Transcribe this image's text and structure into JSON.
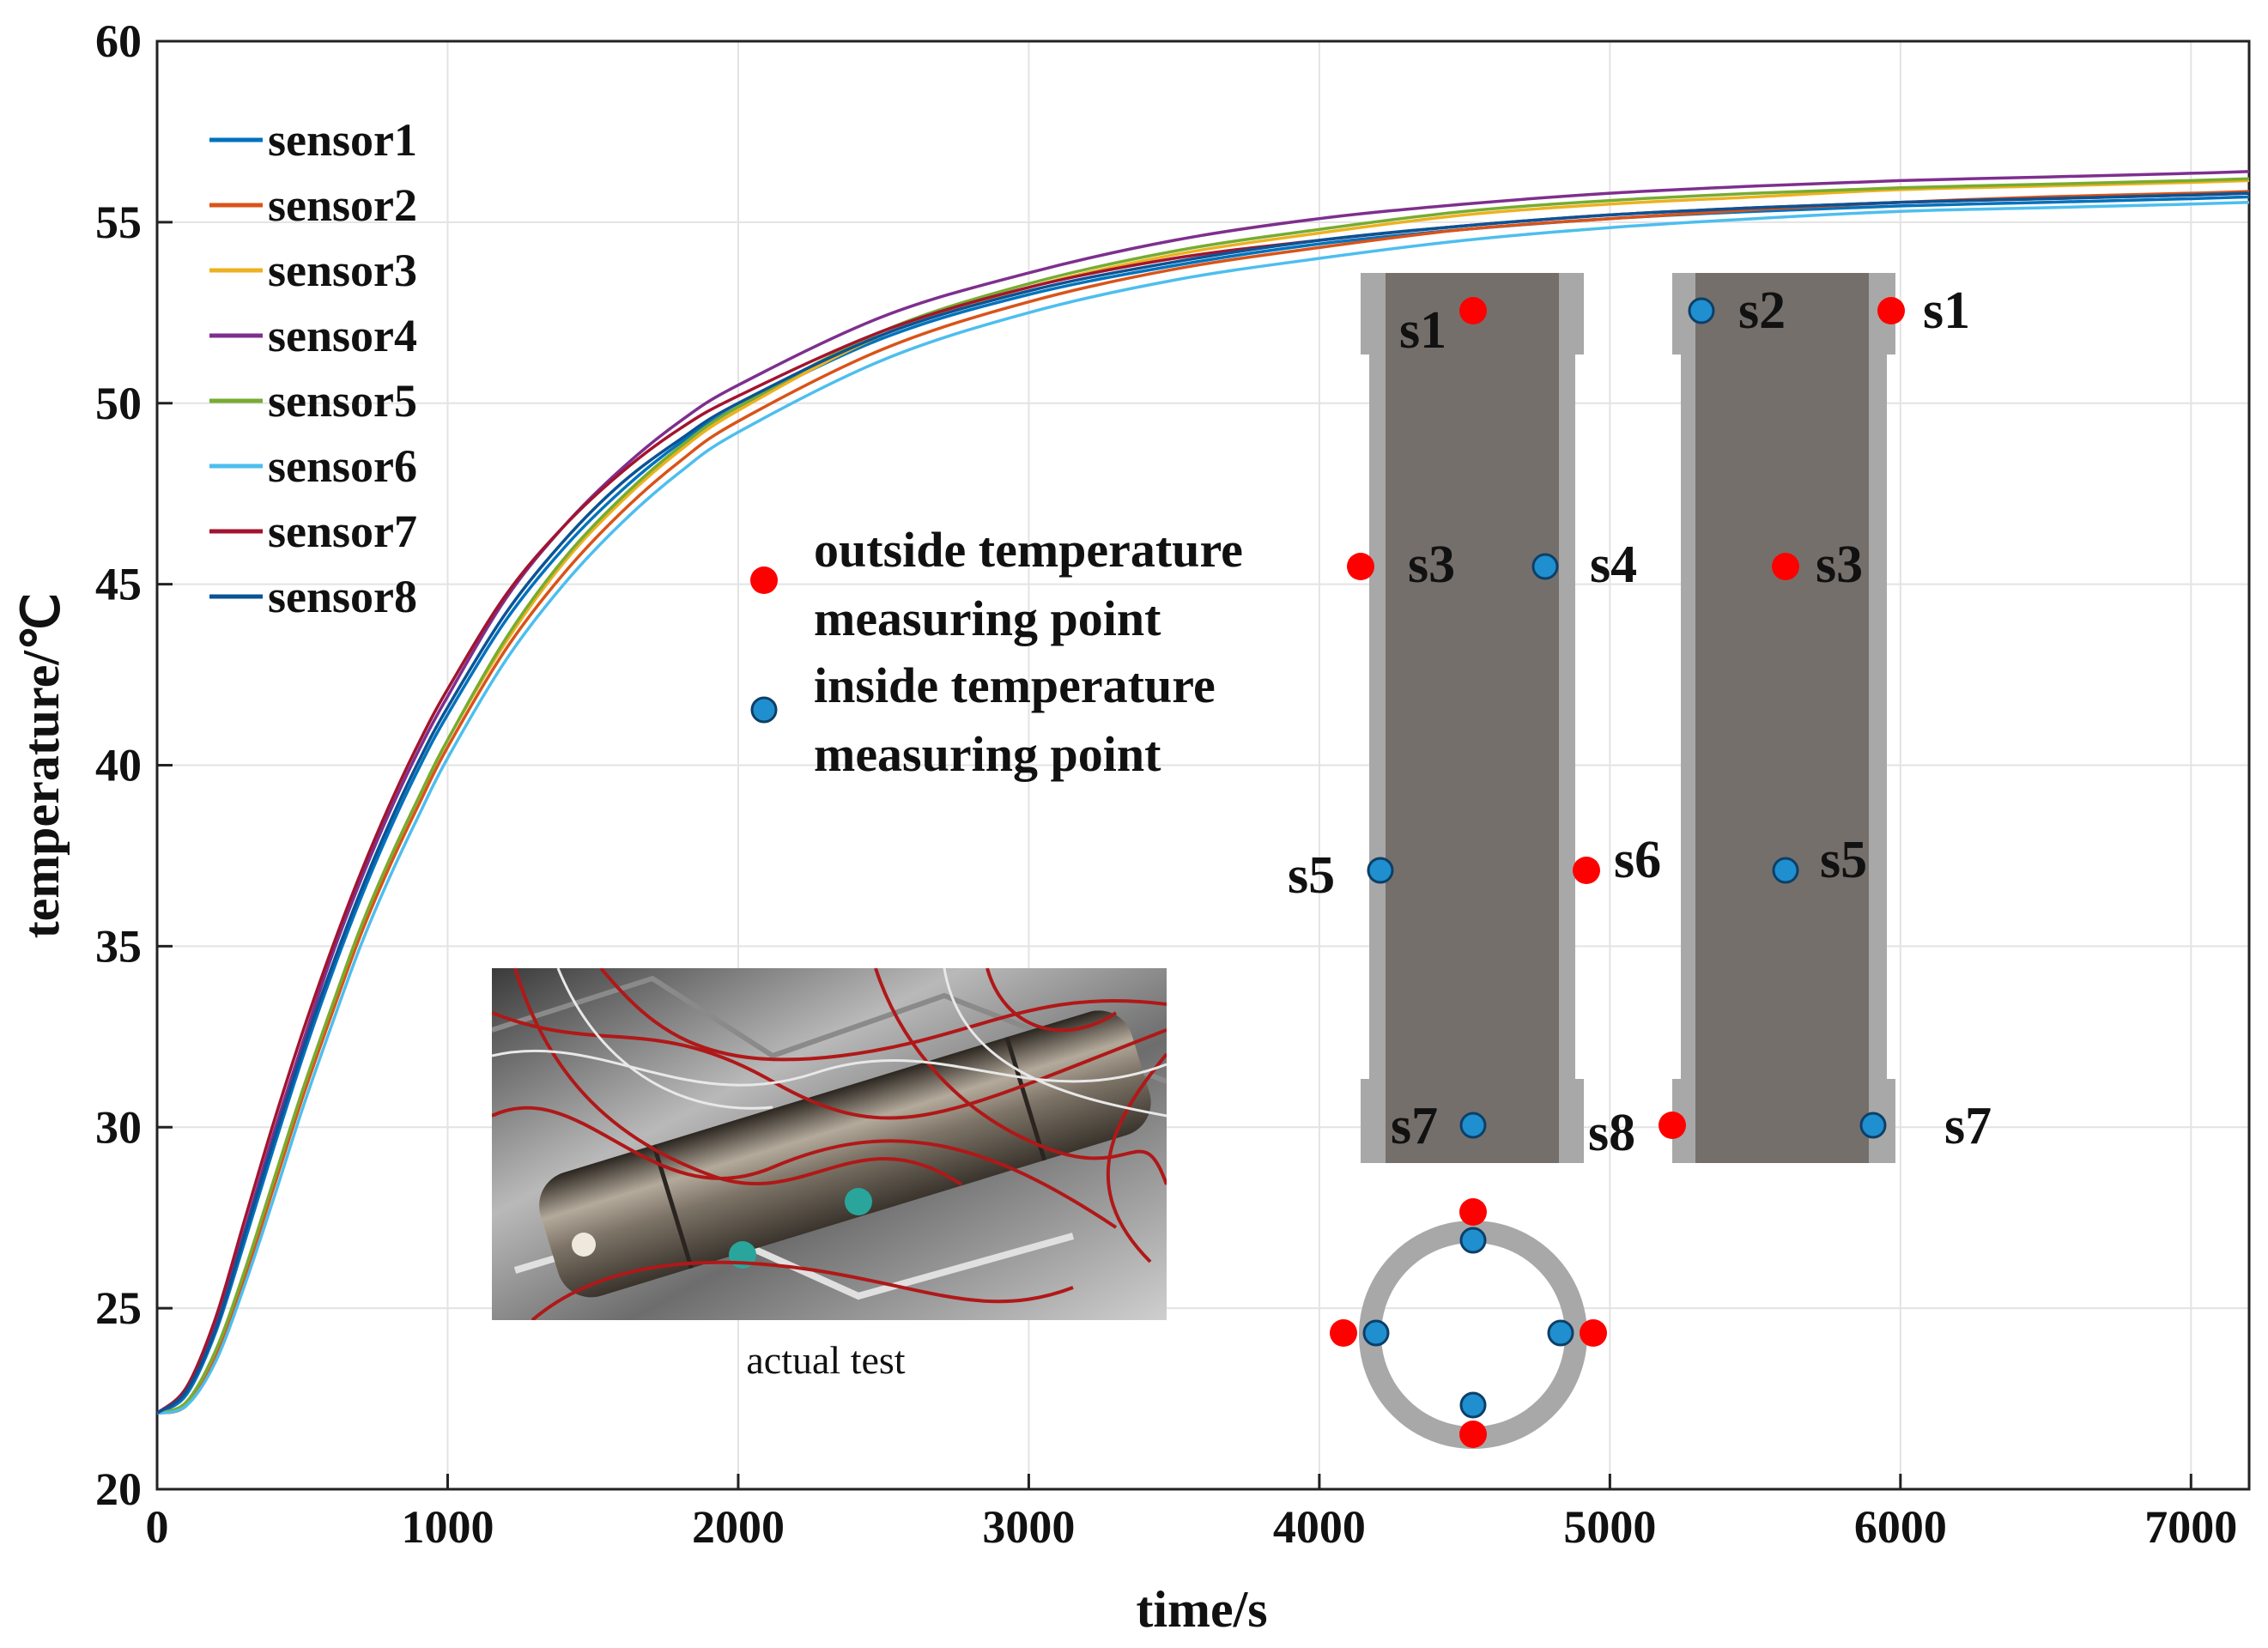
{
  "chart_data": {
    "type": "line",
    "xlabel": "time/s",
    "ylabel": "temperature/℃",
    "xlim": [
      0,
      7200
    ],
    "ylim": [
      20,
      60
    ],
    "xticks": [
      "0",
      "1000",
      "2000",
      "3000",
      "4000",
      "5000",
      "6000",
      "7000"
    ],
    "yticks": [
      "20",
      "25",
      "30",
      "35",
      "40",
      "45",
      "50",
      "55",
      "60"
    ],
    "grid": true,
    "legend_position": "top-left",
    "x": [
      0,
      100,
      200,
      300,
      400,
      500,
      600,
      700,
      800,
      900,
      1000,
      1200,
      1400,
      1600,
      1800,
      2000,
      2500,
      3000,
      3500,
      4000,
      4500,
      5000,
      5500,
      6000,
      6500,
      7000,
      7200
    ],
    "series": [
      {
        "name": "sensor1",
        "color": "#0072BD",
        "values": [
          22.1,
          22.6,
          24.3,
          26.8,
          29.4,
          31.9,
          34.2,
          36.3,
          38.2,
          39.9,
          41.4,
          44.0,
          46.0,
          47.6,
          48.9,
          49.9,
          51.8,
          53.0,
          53.8,
          54.4,
          54.8,
          55.1,
          55.3,
          55.45,
          55.55,
          55.65,
          55.7
        ]
      },
      {
        "name": "sensor2",
        "color": "#D95319",
        "values": [
          22.1,
          22.3,
          23.6,
          25.8,
          28.3,
          30.8,
          33.1,
          35.3,
          37.2,
          38.9,
          40.5,
          43.2,
          45.3,
          47.0,
          48.4,
          49.5,
          51.5,
          52.8,
          53.7,
          54.3,
          54.8,
          55.1,
          55.35,
          55.55,
          55.7,
          55.8,
          55.85
        ]
      },
      {
        "name": "sensor3",
        "color": "#EDB120",
        "values": [
          22.1,
          22.4,
          23.8,
          26.0,
          28.5,
          31.0,
          33.3,
          35.5,
          37.4,
          39.1,
          40.7,
          43.4,
          45.6,
          47.3,
          48.7,
          49.8,
          51.9,
          53.2,
          54.1,
          54.7,
          55.2,
          55.5,
          55.7,
          55.9,
          56.0,
          56.1,
          56.15
        ]
      },
      {
        "name": "sensor4",
        "color": "#7E2F8E",
        "values": [
          22.1,
          22.7,
          24.5,
          27.1,
          29.8,
          32.3,
          34.7,
          36.8,
          38.7,
          40.4,
          41.9,
          44.6,
          46.6,
          48.2,
          49.5,
          50.5,
          52.4,
          53.6,
          54.5,
          55.1,
          55.5,
          55.8,
          56.0,
          56.15,
          56.25,
          56.35,
          56.4
        ]
      },
      {
        "name": "sensor5",
        "color": "#77AC30",
        "values": [
          22.1,
          22.4,
          23.8,
          26.0,
          28.5,
          31.0,
          33.3,
          35.5,
          37.4,
          39.1,
          40.7,
          43.5,
          45.7,
          47.4,
          48.8,
          49.9,
          52.0,
          53.3,
          54.2,
          54.8,
          55.3,
          55.6,
          55.8,
          55.95,
          56.05,
          56.15,
          56.2
        ]
      },
      {
        "name": "sensor6",
        "color": "#4DBEEE",
        "values": [
          22.1,
          22.3,
          23.5,
          25.6,
          28.0,
          30.5,
          32.8,
          35.0,
          36.9,
          38.6,
          40.2,
          42.9,
          45.0,
          46.7,
          48.1,
          49.2,
          51.2,
          52.5,
          53.4,
          54.0,
          54.5,
          54.85,
          55.1,
          55.3,
          55.4,
          55.5,
          55.55
        ]
      },
      {
        "name": "sensor7",
        "color": "#A2142F",
        "values": [
          22.1,
          22.8,
          24.7,
          27.4,
          30.1,
          32.6,
          34.9,
          37.0,
          38.9,
          40.6,
          42.1,
          44.7,
          46.6,
          48.1,
          49.3,
          50.2,
          52.0,
          53.2,
          54.0,
          54.5,
          54.9,
          55.2,
          55.4,
          55.55,
          55.65,
          55.75,
          55.8
        ]
      },
      {
        "name": "sensor8",
        "color": "#0B5394",
        "values": [
          22.1,
          22.7,
          24.4,
          27.0,
          29.6,
          32.1,
          34.4,
          36.5,
          38.4,
          40.1,
          41.6,
          44.2,
          46.2,
          47.8,
          49.0,
          50.0,
          51.9,
          53.1,
          53.9,
          54.5,
          54.9,
          55.2,
          55.4,
          55.55,
          55.65,
          55.75,
          55.8
        ]
      }
    ]
  },
  "annotations": {
    "outside_label_line1": "outside temperature",
    "outside_label_line2": "measuring point",
    "inside_label_line1": "inside temperature",
    "inside_label_line2": "measuring point",
    "outside_color": "#FF0000",
    "inside_color": "#1F8FCF",
    "photo_caption": "actual test",
    "left_diagram": {
      "s1": "s1",
      "s3": "s3",
      "s4": "s4",
      "s5": "s5",
      "s6": "s6",
      "s7": "s7",
      "s8": "s8"
    },
    "right_diagram": {
      "s2": "s2",
      "s1": "s1",
      "s3": "s3",
      "s5": "s5",
      "s7": "s7"
    }
  }
}
